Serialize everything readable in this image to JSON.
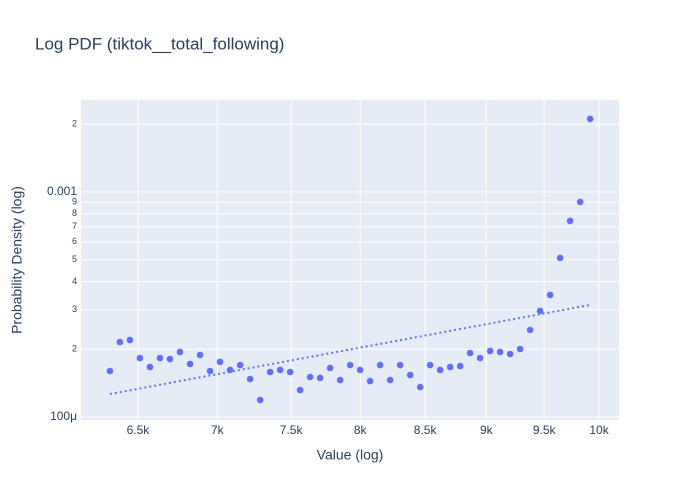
{
  "chart_data": {
    "type": "scatter",
    "title": "Log PDF (tiktok__total_following)",
    "x_label": "Value (log)",
    "y_label": "Probability Density (log)",
    "log_x": true,
    "log_y": true,
    "grid": true,
    "plot_bg": "#e5ecf6",
    "xlim": [
      6163,
      10188
    ],
    "ylim": [
      9.7e-05,
      0.00256
    ],
    "xticks": [
      {
        "value": 6500,
        "label": "6.5k"
      },
      {
        "value": 7000,
        "label": "7k"
      },
      {
        "value": 7500,
        "label": "7.5k"
      },
      {
        "value": 8000,
        "label": "8k"
      },
      {
        "value": 8500,
        "label": "8.5k"
      },
      {
        "value": 9000,
        "label": "9k"
      },
      {
        "value": 9500,
        "label": "9.5k"
      },
      {
        "value": 10000,
        "label": "10k"
      }
    ],
    "yticks": [
      {
        "value": 0.0001,
        "label": "100μ"
      },
      {
        "value": 0.0002,
        "label": "2"
      },
      {
        "value": 0.0003,
        "label": "3"
      },
      {
        "value": 0.0004,
        "label": "4"
      },
      {
        "value": 0.0005,
        "label": "5"
      },
      {
        "value": 0.0006,
        "label": "6"
      },
      {
        "value": 0.0007,
        "label": "7"
      },
      {
        "value": 0.0008,
        "label": "8"
      },
      {
        "value": 0.0009,
        "label": "9"
      },
      0.001,
      {
        "value": 0.002,
        "label": "2"
      }
    ],
    "series": [
      {
        "color": "#636efa",
        "mode": "markers",
        "x": [
          6332,
          6391,
          6451,
          6512,
          6573,
          6635,
          6697,
          6760,
          6824,
          6888,
          6953,
          7018,
          7084,
          7151,
          7218,
          7286,
          7354,
          7423,
          7493,
          7563,
          7634,
          7706,
          7778,
          7851,
          7925,
          7999,
          8074,
          8150,
          8227,
          8304,
          8382,
          8461,
          8540,
          8620,
          8701,
          8783,
          8865,
          8948,
          9032,
          9117,
          9203,
          9289,
          9376,
          9464,
          9553,
          9643,
          9733,
          9825,
          9917
        ],
        "values": [
          0.0001601,
          0.0002154,
          0.0002199,
          0.0001829,
          0.0001668,
          0.0001829,
          0.000181,
          0.0001945,
          0.000172,
          0.0001886,
          0.0001601,
          0.0001756,
          0.0001618,
          0.0001702,
          0.0001475,
          0.000119,
          0.0001585,
          0.0001618,
          0.0001585,
          0.0001318,
          0.0001506,
          0.0001491,
          0.0001651,
          0.000146,
          0.0001702,
          0.0001618,
          0.0001445,
          0.0001702,
          0.000146,
          0.0001702,
          0.0001537,
          0.0001359,
          0.0001702,
          0.0001618,
          0.0001668,
          0.0001685,
          0.0001925,
          0.0001829,
          0.0001965,
          0.0001945,
          0.0001905,
          0.0002005,
          0.0002436,
          0.0002959,
          0.0003485,
          0.0005088,
          0.0007431,
          0.0009027,
          0.00211
        ]
      },
      {
        "color": "#636efa",
        "mode": "lines",
        "dash": "dot",
        "x": [
          6332,
          9917
        ],
        "values": [
          0.0001265,
          0.0003147
        ]
      }
    ]
  }
}
